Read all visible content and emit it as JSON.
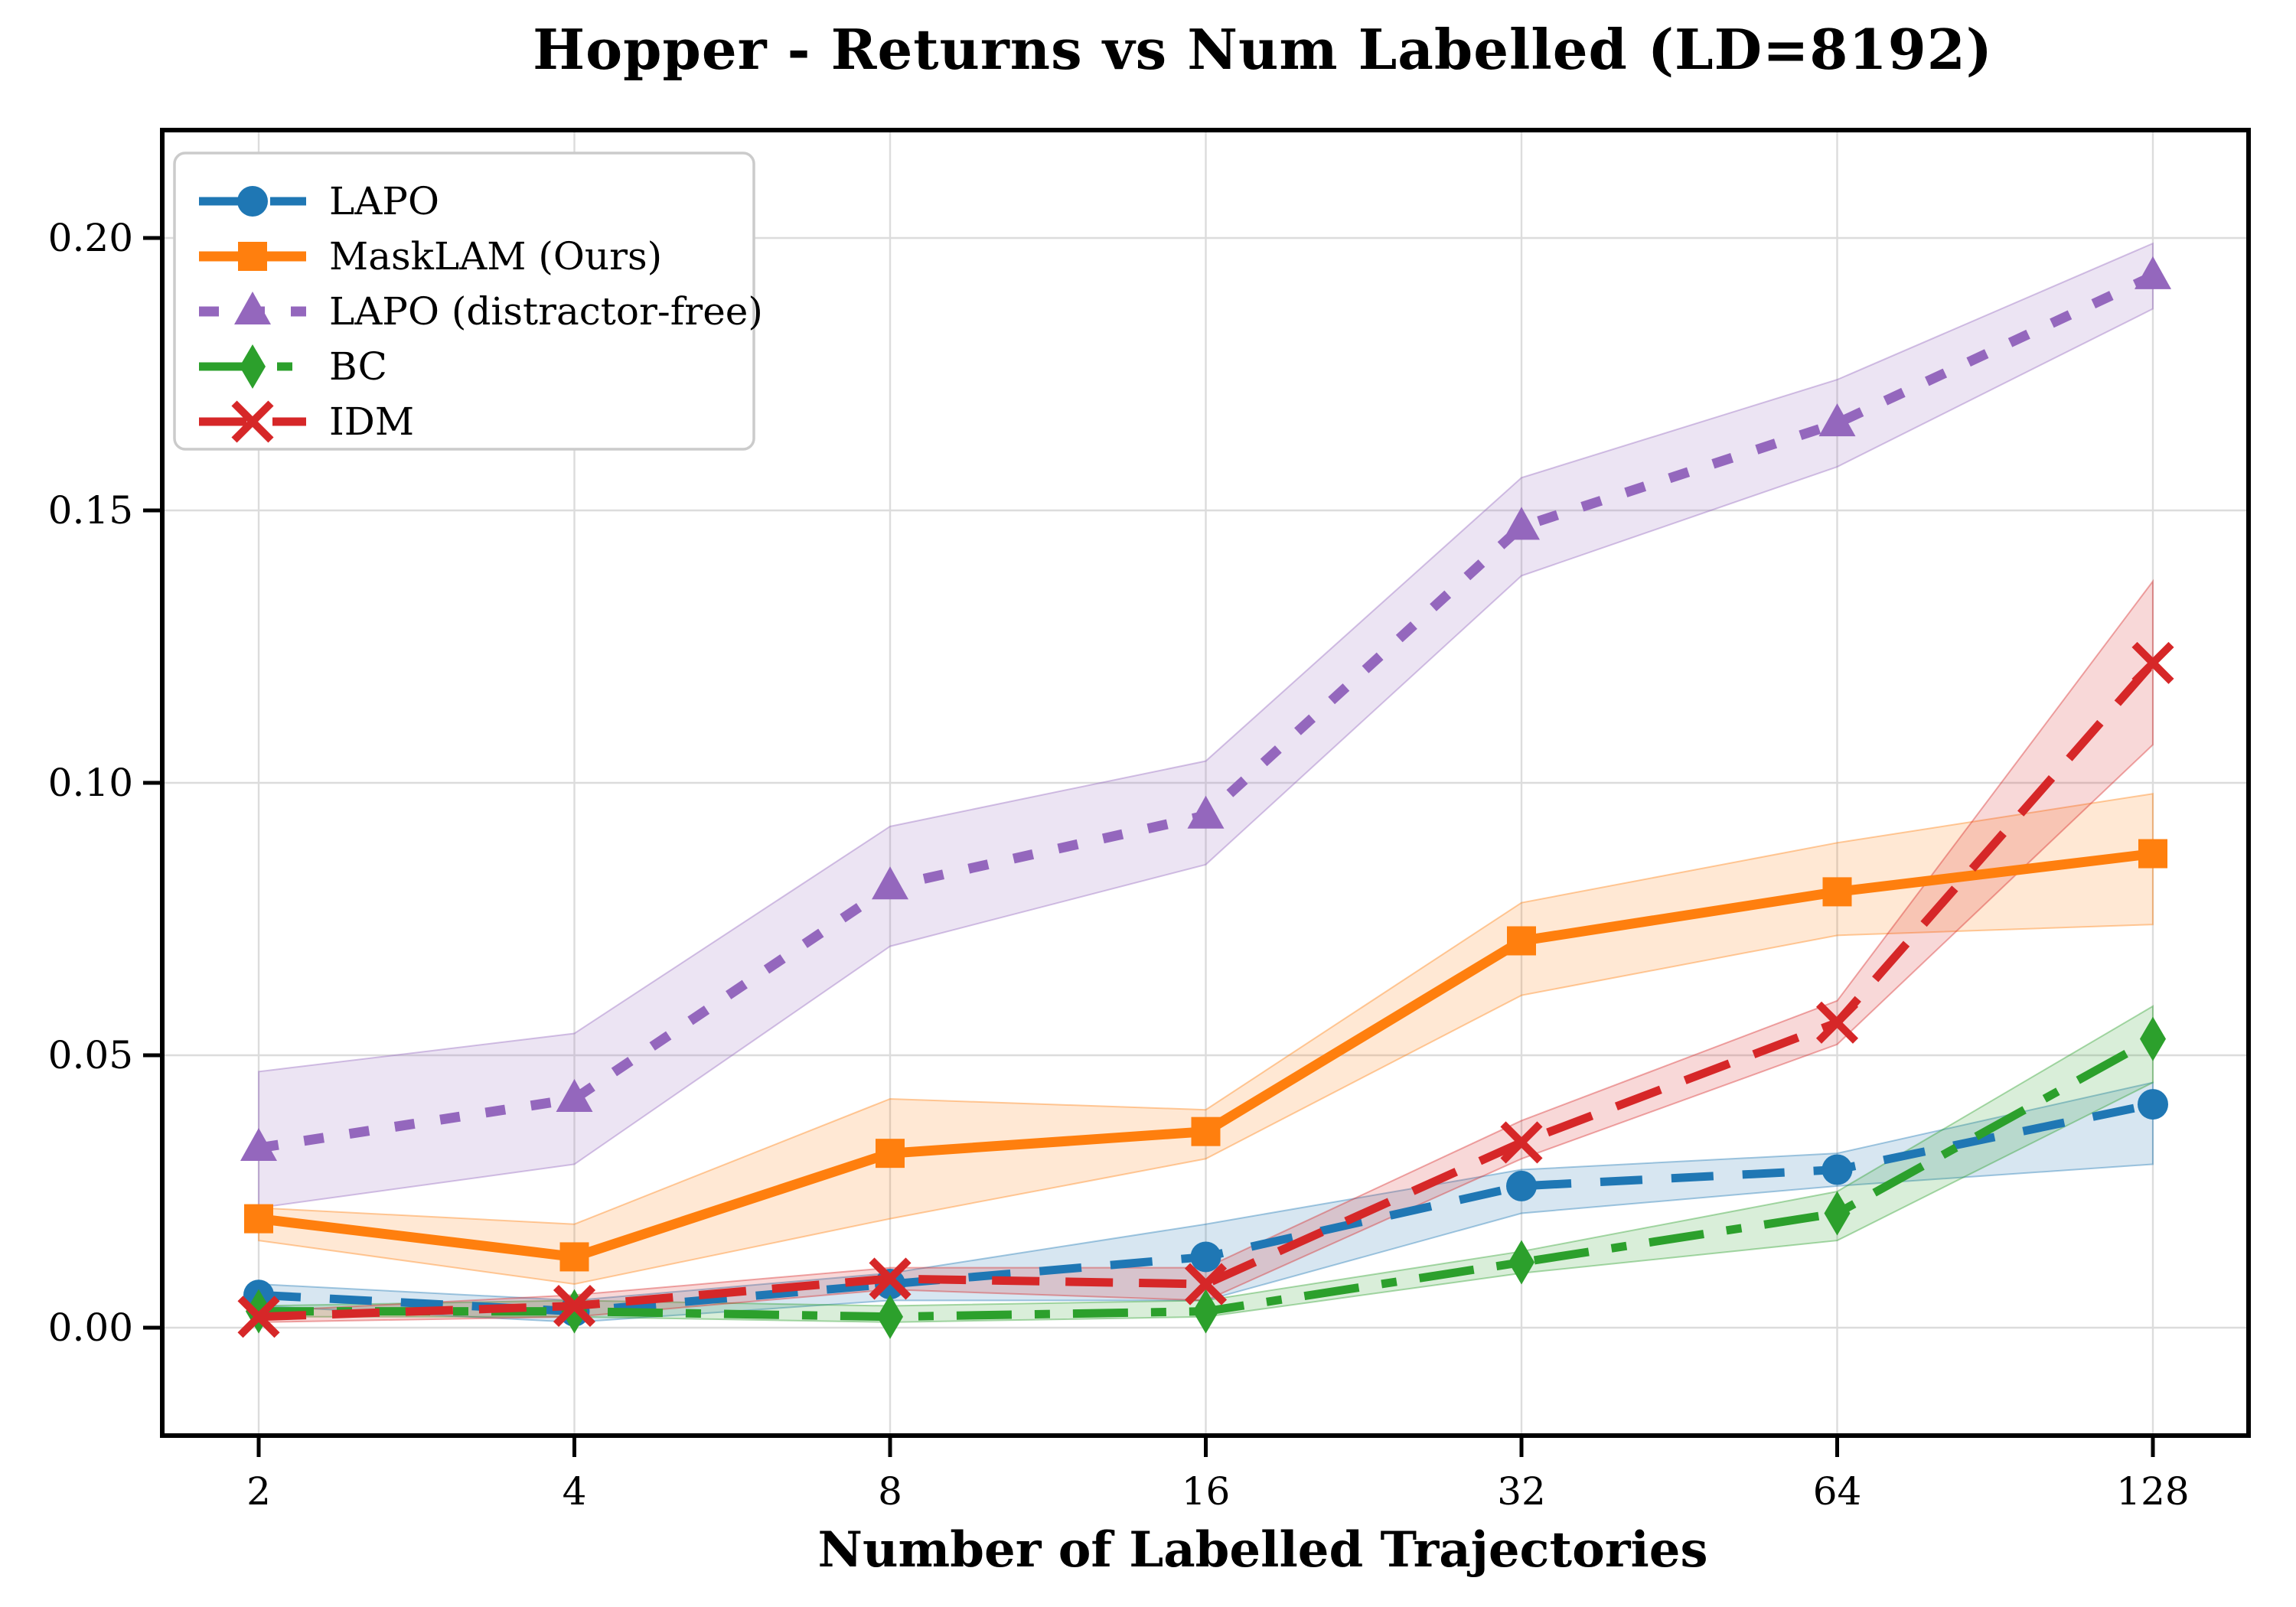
{
  "figure": {
    "title": "Hopper - Returns vs Num Labelled (LD=8192)",
    "xlabel": "Number of Labelled Trajectories"
  },
  "chart_data": {
    "type": "line",
    "title": "Hopper - Returns vs Num Labelled (LD=8192)",
    "xlabel": "Number of Labelled Trajectories",
    "ylabel": "",
    "x": [
      2,
      4,
      8,
      16,
      32,
      64,
      128
    ],
    "x_scale": "log2",
    "xtick_labels": [
      "2",
      "4",
      "8",
      "16",
      "32",
      "64",
      "128"
    ],
    "yticks": [
      0.0,
      0.05,
      0.1,
      0.15,
      0.2
    ],
    "ytick_labels": [
      "0.00",
      "0.05",
      "0.10",
      "0.15",
      "0.20"
    ],
    "ylim": [
      -0.0198,
      0.2198
    ],
    "grid": true,
    "grid_color": "#dcdcdc",
    "legend_position": "upper-left",
    "series": [
      {
        "name": "LAPO",
        "color": "#1f77b4",
        "linestyle": "dashed",
        "marker": "circle",
        "values": [
          0.006,
          0.003,
          0.008,
          0.013,
          0.026,
          0.029,
          0.041
        ],
        "band_low": [
          0.004,
          0.001,
          0.005,
          0.005,
          0.021,
          0.026,
          0.03
        ],
        "band_high": [
          0.008,
          0.005,
          0.01,
          0.019,
          0.029,
          0.032,
          0.045
        ]
      },
      {
        "name": "MaskLAM (Ours)",
        "color": "#ff7f0e",
        "linestyle": "solid",
        "marker": "square",
        "values": [
          0.02,
          0.013,
          0.032,
          0.036,
          0.071,
          0.08,
          0.087
        ],
        "band_low": [
          0.016,
          0.008,
          0.02,
          0.031,
          0.061,
          0.072,
          0.074
        ],
        "band_high": [
          0.022,
          0.019,
          0.042,
          0.04,
          0.078,
          0.089,
          0.098
        ]
      },
      {
        "name": "LAPO (distractor-free)",
        "color": "#9467bd",
        "linestyle": "dotted",
        "marker": "triangle",
        "values": [
          0.033,
          0.042,
          0.081,
          0.094,
          0.147,
          0.166,
          0.193
        ],
        "band_low": [
          0.022,
          0.03,
          0.07,
          0.085,
          0.138,
          0.158,
          0.187
        ],
        "band_high": [
          0.047,
          0.054,
          0.092,
          0.104,
          0.156,
          0.174,
          0.199
        ]
      },
      {
        "name": "BC",
        "color": "#2ca02c",
        "linestyle": "dashdot",
        "marker": "thin-diamond",
        "values": [
          0.003,
          0.003,
          0.002,
          0.003,
          0.012,
          0.021,
          0.053
        ],
        "band_low": [
          0.002,
          0.002,
          0.001,
          0.002,
          0.01,
          0.016,
          0.045
        ],
        "band_high": [
          0.004,
          0.005,
          0.004,
          0.005,
          0.014,
          0.025,
          0.059
        ]
      },
      {
        "name": "IDM",
        "color": "#d62728",
        "linestyle": "dashed",
        "marker": "x",
        "values": [
          0.002,
          0.004,
          0.009,
          0.008,
          0.034,
          0.056,
          0.122
        ],
        "band_low": [
          0.001,
          0.002,
          0.007,
          0.005,
          0.031,
          0.052,
          0.107
        ],
        "band_high": [
          0.003,
          0.006,
          0.011,
          0.011,
          0.038,
          0.06,
          0.137
        ]
      }
    ]
  }
}
